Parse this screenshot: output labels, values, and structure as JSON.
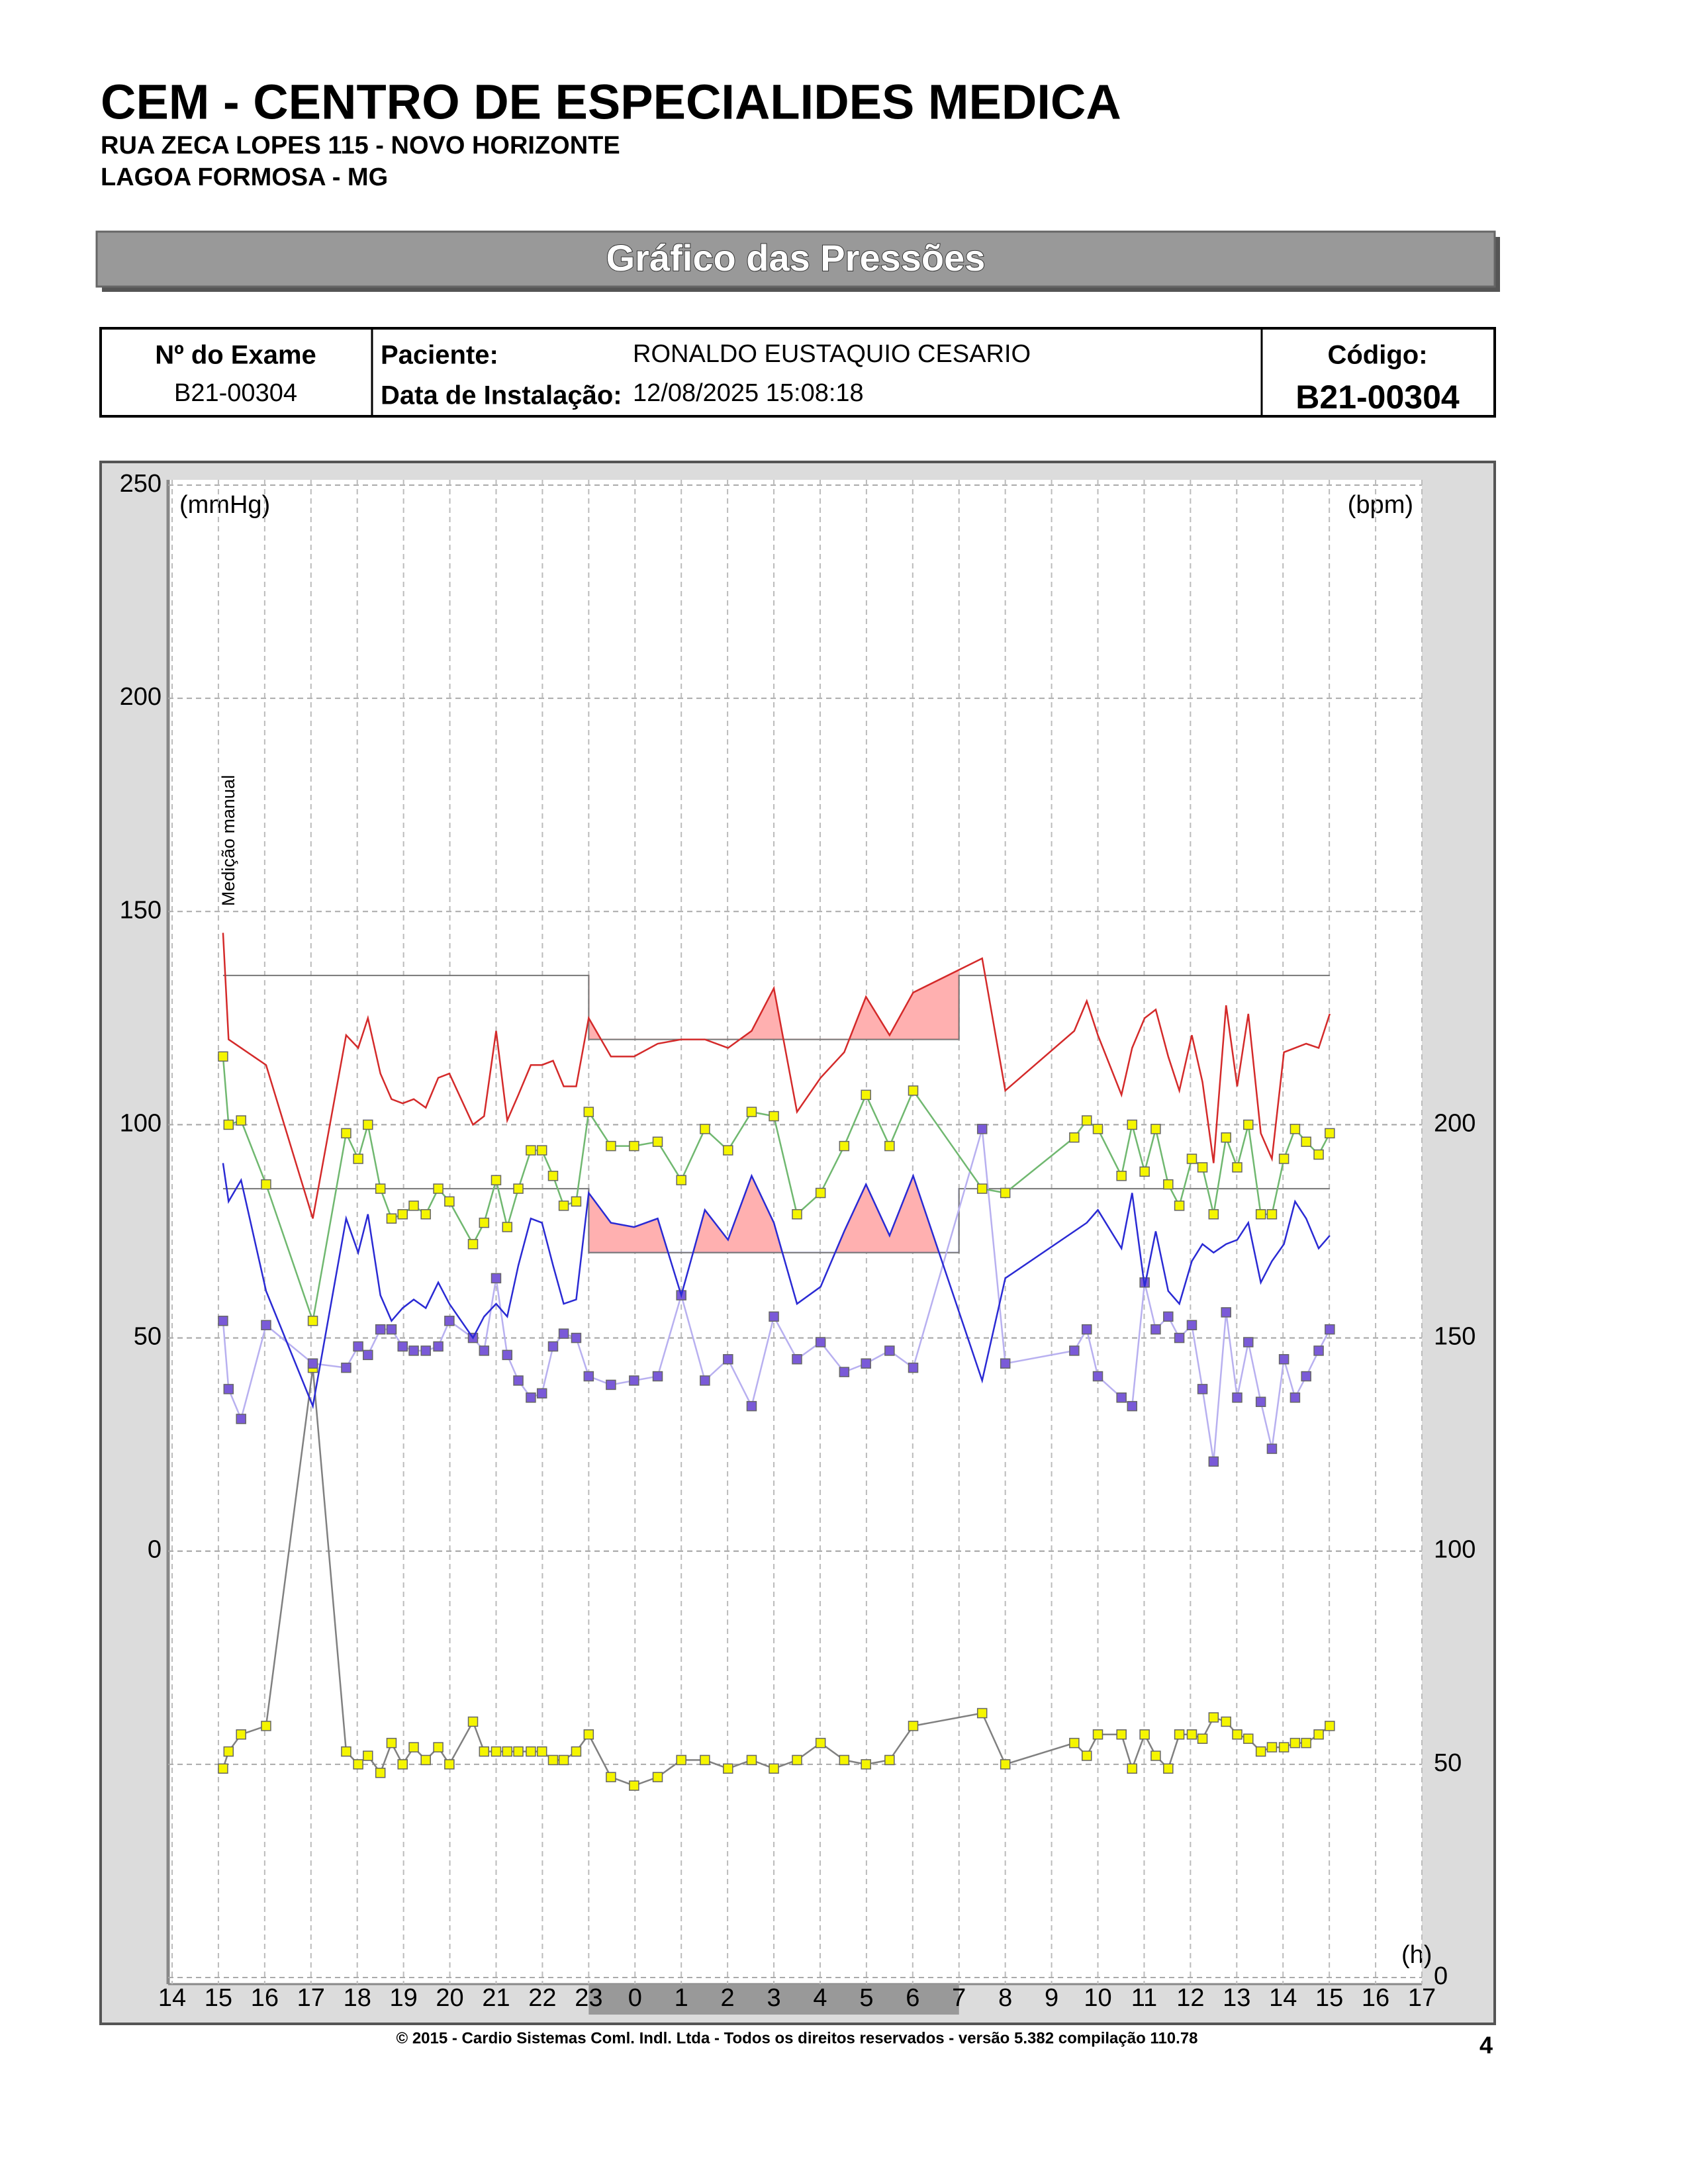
{
  "header": {
    "title": "CEM - CENTRO DE ESPECIALIDES MEDICA",
    "address": "RUA ZECA LOPES 115 - NOVO HORIZONTE",
    "city": "LAGOA FORMOSA - MG",
    "banner": "Gráfico das Pressões"
  },
  "info": {
    "exam_label": "Nº do Exame",
    "exam": "B21-00304",
    "patient_label": "Paciente:",
    "patient": "RONALDO EUSTAQUIO CESARIO",
    "install_label": "Data de Instalação:",
    "install": "12/08/2025 15:08:18",
    "code_label": "Código:",
    "code": "B21-00304"
  },
  "chart_data": {
    "type": "line",
    "ylabel": "(mmHg)",
    "y2label": "(bpm)",
    "xlabel": "(h)",
    "grid": true,
    "annotations": [
      {
        "text": "Medição manual",
        "x": 15.1
      }
    ],
    "sleep_period": [
      23,
      31
    ],
    "sleep_color": "#999999",
    "excess_color": "#ffb0b0",
    "xlim": [
      14,
      41
    ],
    "xticks": [
      14,
      15,
      16,
      17,
      18,
      19,
      20,
      21,
      22,
      23,
      {
        "value": 24,
        "label": "0"
      },
      {
        "value": 25,
        "label": "1"
      },
      {
        "value": 26,
        "label": "2"
      },
      {
        "value": 27,
        "label": "3"
      },
      {
        "value": 28,
        "label": "4"
      },
      {
        "value": 29,
        "label": "5"
      },
      {
        "value": 30,
        "label": "6"
      },
      {
        "value": 31,
        "label": "7"
      },
      {
        "value": 32,
        "label": "8"
      },
      {
        "value": 33,
        "label": "9"
      },
      {
        "value": 34,
        "label": "10"
      },
      {
        "value": 35,
        "label": "11"
      },
      {
        "value": 36,
        "label": "12"
      },
      {
        "value": 37,
        "label": "13"
      },
      {
        "value": 38,
        "label": "14"
      },
      {
        "value": 39,
        "label": "15"
      },
      {
        "value": 40,
        "label": "16"
      },
      {
        "value": 41,
        "label": "17"
      }
    ],
    "ylim": [
      -100,
      250
    ],
    "yticks": [
      0,
      50,
      100,
      150,
      200,
      250
    ],
    "y2lim": [
      0,
      350
    ],
    "y2ticks": [
      0,
      50,
      100,
      150,
      200
    ],
    "x": [
      15.1,
      15.22,
      15.49,
      16.03,
      17.04,
      17.76,
      18.02,
      18.23,
      18.5,
      18.74,
      18.98,
      19.22,
      19.48,
      19.75,
      19.99,
      20.5,
      20.74,
      21.0,
      21.24,
      21.48,
      21.75,
      21.99,
      22.23,
      22.46,
      22.73,
      23.0,
      23.48,
      23.98,
      24.49,
      25.0,
      25.51,
      26.01,
      26.52,
      27.0,
      27.5,
      28.01,
      28.52,
      28.99,
      29.5,
      30.01,
      31.5,
      32.0,
      33.49,
      33.76,
      34.0,
      34.51,
      34.74,
      35.01,
      35.25,
      35.52,
      35.76,
      36.03,
      36.26,
      36.5,
      36.77,
      37.01,
      37.25,
      37.52,
      37.76,
      38.02,
      38.26,
      38.5,
      38.77,
      39.01
    ],
    "series": [
      {
        "color": "#d42a2a",
        "limit": {
          "day": 135,
          "night": 120
        },
        "values": [
          145,
          120,
          118,
          114,
          78,
          121,
          118,
          125,
          112,
          106,
          105,
          106,
          104,
          111,
          112,
          100,
          102,
          122,
          101,
          107,
          114,
          114,
          115,
          109,
          109,
          125,
          116,
          116,
          119,
          120,
          120,
          118,
          122,
          132,
          103,
          111,
          117,
          130,
          121,
          131,
          139,
          108,
          122,
          129,
          121,
          107,
          118,
          125,
          127,
          116,
          108,
          121,
          110,
          91,
          128,
          109,
          126,
          98,
          92,
          117,
          118,
          119,
          118,
          126
        ]
      },
      {
        "color": "#2a2ad4",
        "limit": {
          "day": 85,
          "night": 70
        },
        "values": [
          91,
          82,
          87,
          61,
          34,
          78,
          70,
          79,
          60,
          54,
          57,
          59,
          57,
          63,
          58,
          50,
          55,
          58,
          55,
          67,
          78,
          77,
          67,
          58,
          59,
          84,
          77,
          76,
          78,
          60,
          80,
          73,
          88,
          77,
          58,
          62,
          75,
          86,
          74,
          88,
          40,
          64,
          75,
          77,
          80,
          71,
          84,
          62,
          75,
          61,
          58,
          68,
          72,
          70,
          72,
          73,
          77,
          63,
          68,
          72,
          82,
          78,
          71,
          74
        ]
      },
      {
        "color": "#70b870",
        "marker": "#f5f500",
        "values": [
          116,
          100,
          101,
          86,
          54,
          98,
          92,
          100,
          85,
          78,
          79,
          81,
          79,
          85,
          82,
          72,
          77,
          87,
          76,
          85,
          94,
          94,
          88,
          81,
          82,
          103,
          95,
          95,
          96,
          87,
          99,
          94,
          103,
          102,
          79,
          84,
          95,
          107,
          95,
          108,
          85,
          84,
          97,
          101,
          99,
          88,
          100,
          89,
          99,
          86,
          81,
          92,
          90,
          79,
          97,
          90,
          100,
          79,
          79,
          92,
          99,
          96,
          93,
          98
        ]
      },
      {
        "color": "#b8b0f0",
        "marker": "#7a5ad8",
        "values": [
          54,
          38,
          31,
          53,
          44,
          43,
          48,
          46,
          52,
          52,
          48,
          47,
          47,
          48,
          54,
          50,
          47,
          64,
          46,
          40,
          36,
          37,
          48,
          51,
          50,
          41,
          39,
          40,
          41,
          60,
          40,
          45,
          34,
          55,
          45,
          49,
          42,
          44,
          47,
          43,
          99,
          44,
          47,
          52,
          41,
          36,
          34,
          63,
          52,
          55,
          50,
          53,
          38,
          21,
          56,
          36,
          49,
          35,
          24,
          45,
          36,
          41,
          47,
          52
        ]
      },
      {
        "color": "#808080",
        "marker": "#f5f500",
        "axis": "y2",
        "values": [
          49,
          53,
          57,
          59,
          143,
          53,
          50,
          52,
          48,
          55,
          50,
          54,
          51,
          54,
          50,
          60,
          53,
          53,
          53,
          53,
          53,
          53,
          51,
          51,
          53,
          57,
          47,
          45,
          47,
          51,
          51,
          49,
          51,
          49,
          51,
          55,
          51,
          50,
          51,
          59,
          62,
          50,
          55,
          52,
          57,
          57,
          49,
          57,
          52,
          49,
          57,
          57,
          56,
          61,
          60,
          57,
          56,
          53,
          54,
          54,
          55,
          55,
          57,
          59
        ]
      }
    ]
  },
  "footer": {
    "copyright": "© 2015 - Cardio Sistemas Coml. Indl. Ltda - Todos os direitos reservados - versão 5.382 compilação 110.78",
    "page": "4"
  }
}
